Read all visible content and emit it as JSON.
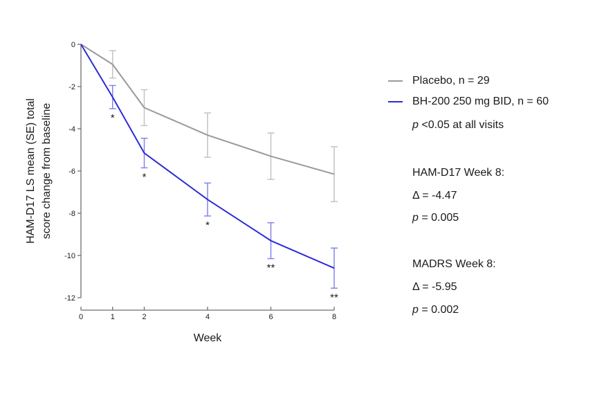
{
  "chart_data": {
    "type": "line",
    "title": "",
    "xlabel": "Week",
    "ylabel_lines": [
      "HAM-D17 LS mean (SE) total",
      "score change from baseline"
    ],
    "x": [
      0,
      1,
      2,
      4,
      6,
      8
    ],
    "x_ticks": [
      0,
      1,
      2,
      4,
      6,
      8
    ],
    "y_ticks": [
      0,
      -2,
      -4,
      -6,
      -8,
      -10,
      -12
    ],
    "xlim": [
      0,
      8
    ],
    "ylim": [
      -12,
      0
    ],
    "grid": false,
    "legend_position": "right",
    "series": [
      {
        "name": "Placebo, n = 29",
        "color": "#999999",
        "error_color": "#c3c3c3",
        "values": [
          0,
          -0.95,
          -3.0,
          -4.3,
          -5.3,
          -6.15
        ],
        "se": [
          0,
          0.65,
          0.85,
          1.05,
          1.1,
          1.3
        ]
      },
      {
        "name": "BH-200 250 mg BID, n = 60",
        "color": "#2b2bd5",
        "error_color": "#8484ea",
        "values": [
          0,
          -2.5,
          -5.15,
          -7.35,
          -9.3,
          -10.6
        ],
        "se": [
          0,
          0.55,
          0.7,
          0.78,
          0.85,
          0.95
        ]
      }
    ],
    "significance_markers": [
      {
        "week": 1,
        "label": "*"
      },
      {
        "week": 2,
        "label": "*"
      },
      {
        "week": 4,
        "label": "*"
      },
      {
        "week": 6,
        "label": "**"
      },
      {
        "week": 8,
        "label": "**"
      }
    ]
  },
  "legend": {
    "items": [
      {
        "label": "Placebo, n = 29",
        "color": "#999999"
      },
      {
        "label": "BH-200 250 mg BID, n = 60",
        "color": "#2b2bd5"
      }
    ],
    "note": {
      "p_prefix": "p",
      "text": " <0.05 at all visits"
    }
  },
  "stats": [
    {
      "title": "HAM-D17 Week 8:",
      "delta": "Δ = -4.47",
      "p_prefix": "p",
      "p_text": " = 0.005"
    },
    {
      "title": "MADRS Week 8:",
      "delta": "Δ = -5.95",
      "p_prefix": "p",
      "p_text": " = 0.002"
    }
  ]
}
